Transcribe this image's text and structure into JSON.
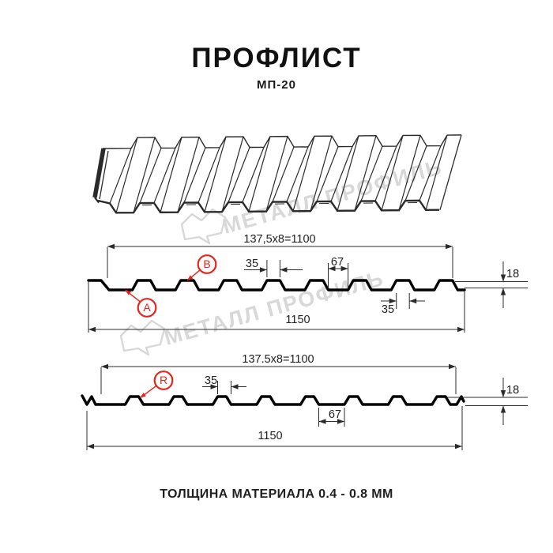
{
  "header": {
    "title": "ПРОФЛИСТ",
    "subtitle": "МП-20"
  },
  "watermark": {
    "text": "МЕТАЛЛ ПРОФИЛЬ",
    "color": "#d8d8d8"
  },
  "colors": {
    "accent_red": "#e8231a",
    "drawing_line": "#000000",
    "dimension_line": "#2b2b2b",
    "watermark_gray": "#d8d8d8"
  },
  "profile_top_view": {
    "markers": {
      "a": "A",
      "b": "B"
    },
    "dimensions": {
      "module": "137,5x8=1100",
      "rib_top_width": "35",
      "valley_width": "67",
      "profile_height": "18",
      "rib_bottom_width": "35",
      "overall_width": "1150"
    }
  },
  "profile_reverse_view": {
    "markers": {
      "r": "R"
    },
    "dimensions": {
      "module": "137.5x8=1100",
      "rib_top_width": "35",
      "valley_width": "67",
      "profile_height": "18",
      "overall_width": "1150"
    }
  },
  "footer": {
    "thickness_note": "ТОЛЩИНА МАТЕРИАЛА 0.4 - 0.8 ММ"
  }
}
